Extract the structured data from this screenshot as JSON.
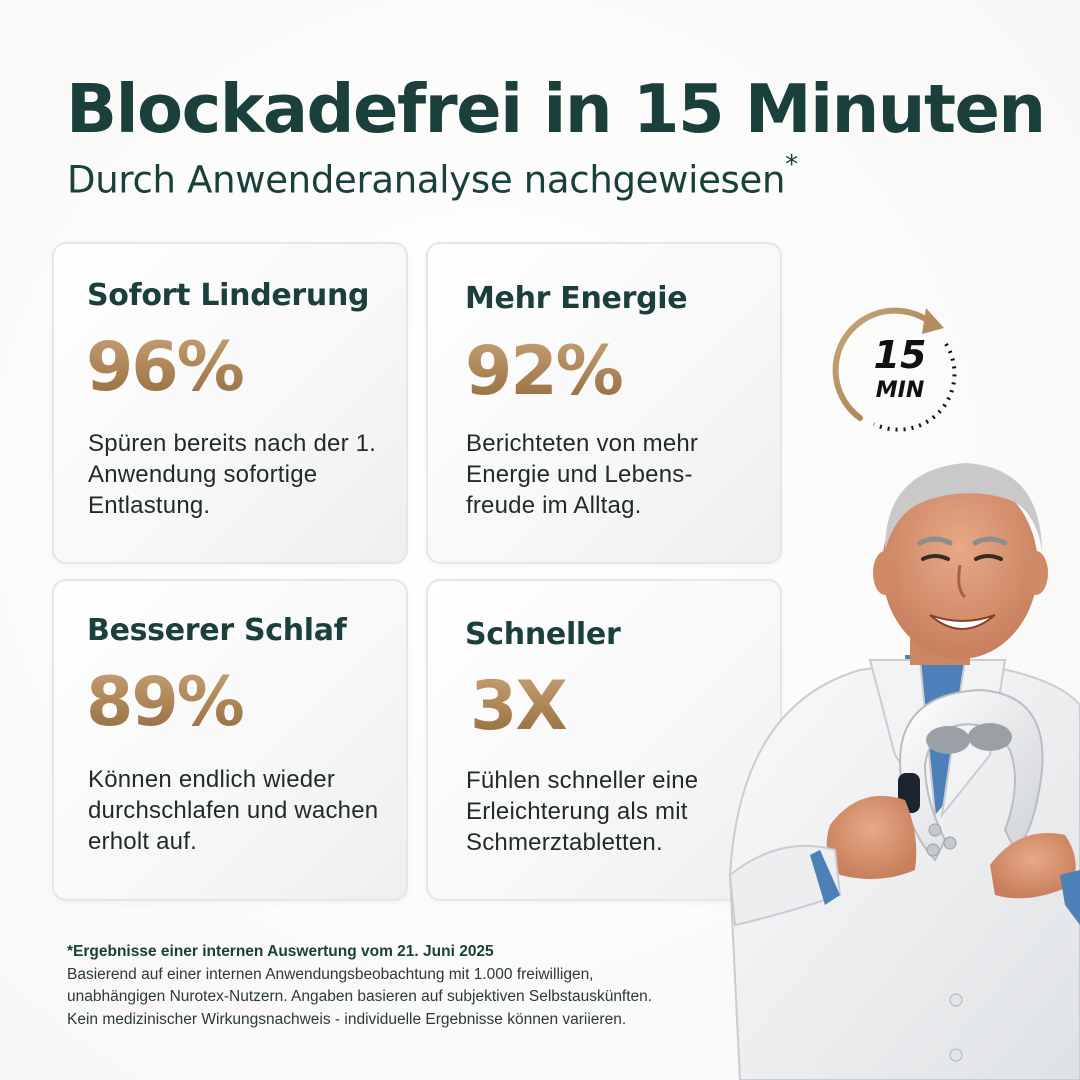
{
  "header": {
    "title": "Blockadefrei in 15 Minuten",
    "subtitle": "Durch Anwenderanalyse nachgewiesen",
    "subtitle_mark": "*"
  },
  "cards": [
    {
      "title": "Sofort Linderung",
      "value": "96%",
      "description": "Spüren bereits nach der 1. Anwendung sofortige Entlastung."
    },
    {
      "title": "Mehr Energie",
      "value": "92%",
      "description": "Berichteten von mehr Energie und Lebens-freude im Alltag."
    },
    {
      "title": "Besserer Schlaf",
      "value": "89%",
      "description": "Können endlich wieder durchschlafen und wachen erholt auf."
    },
    {
      "title": "Schneller",
      "value": "3X",
      "description": "Fühlen schneller eine Erleichterung als mit Schmerztabletten."
    }
  ],
  "timer_badge": {
    "number": "15",
    "unit": "MIN",
    "icon": "stopwatch-icon"
  },
  "footnote": {
    "title": "*Ergebnisse einer internen Auswertung vom 21. Juni 2025",
    "lines": [
      "Basierend auf einer internen Anwendungsbeobachtung mit 1.000 freiwilligen,",
      "unabhängigen Nurotex-Nutzern. Angaben basieren auf subjektiven Selbstauskünften.",
      "Kein medizinischer Wirkungsnachweis - individuelle Ergebnisse können variieren."
    ]
  },
  "colors": {
    "heading": "#1b403c",
    "accent_gold": "#b08a5c",
    "body_text": "#1e2b2a",
    "card_border": "#e6e6e6"
  },
  "image": {
    "icon": "doctor-holding-neck-massager-photo"
  }
}
